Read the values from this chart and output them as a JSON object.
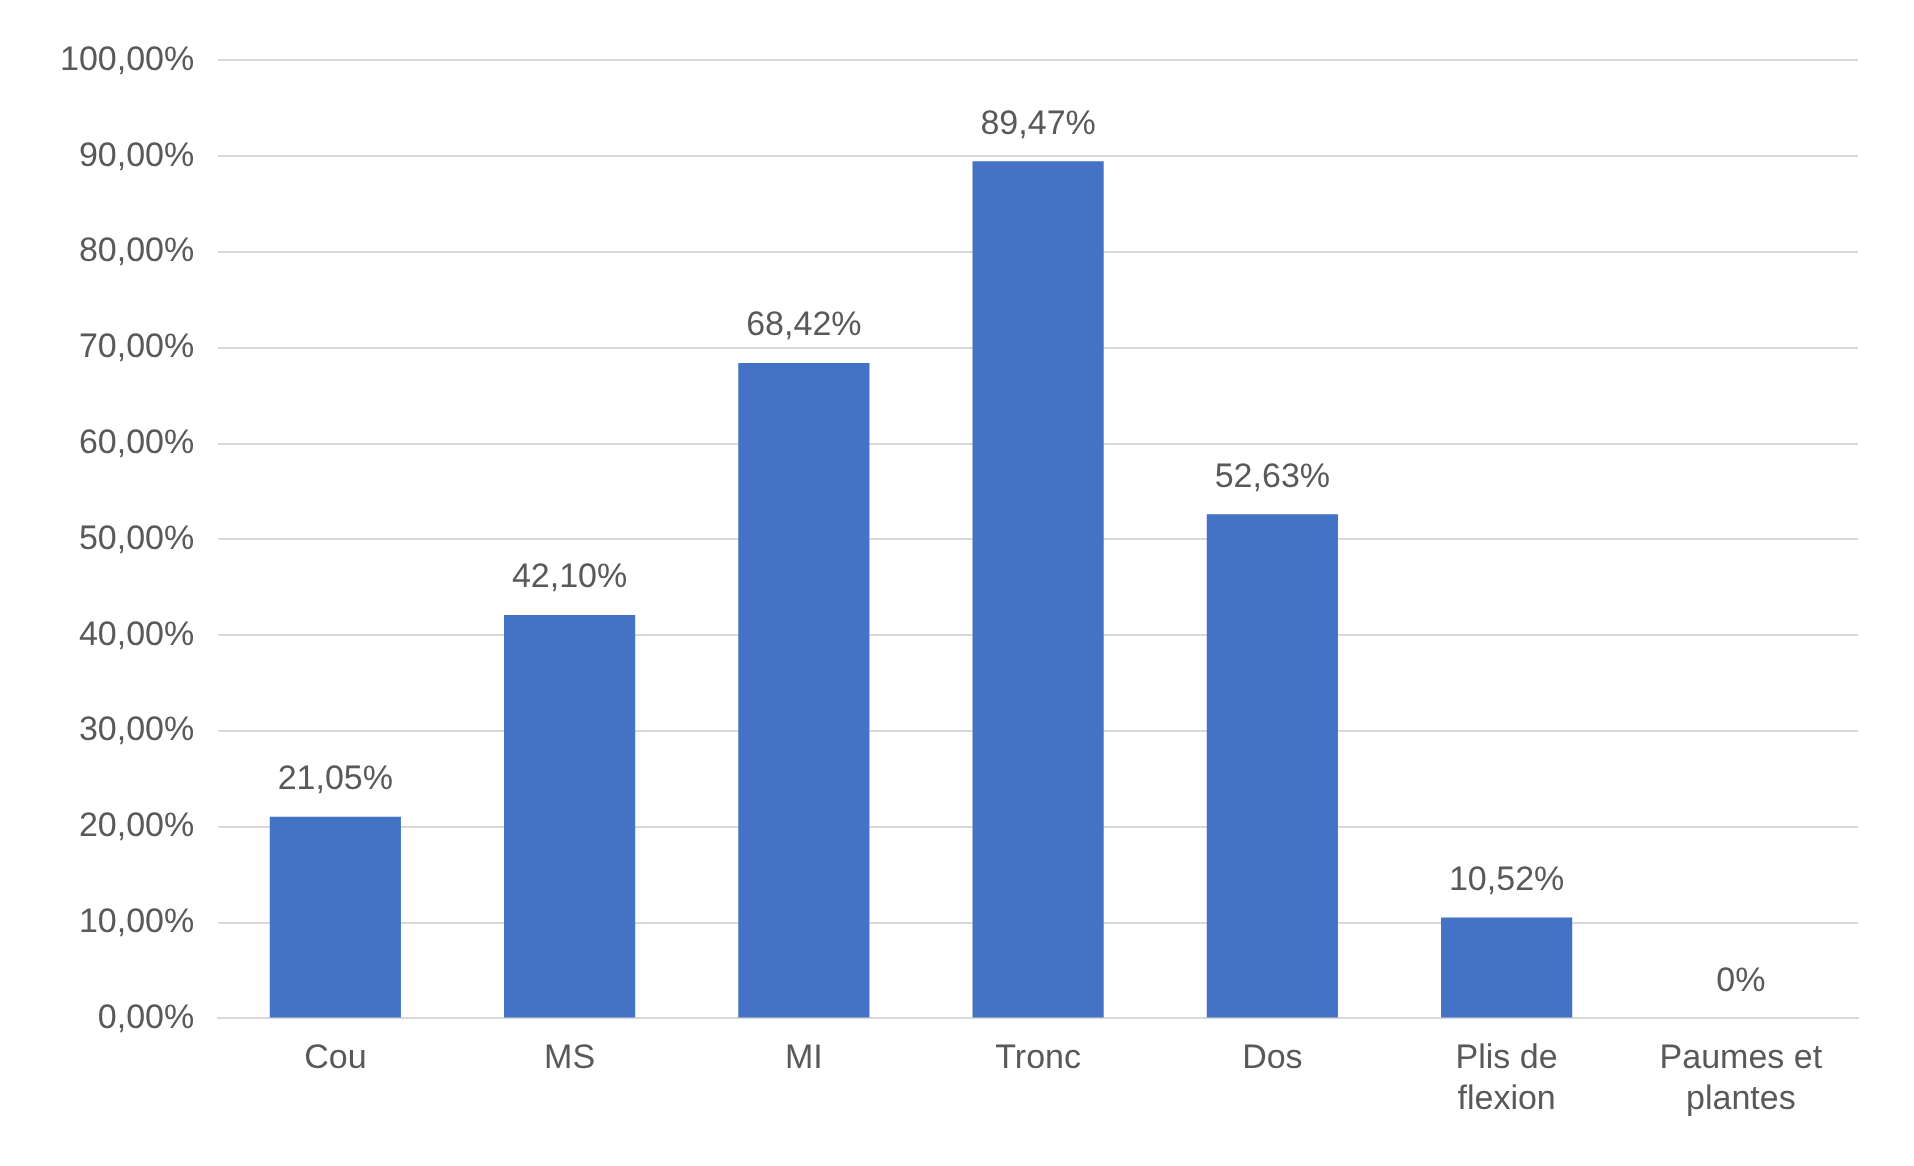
{
  "chart_data": {
    "type": "bar",
    "categories": [
      "Cou",
      "MS",
      "MI",
      "Tronc",
      "Dos",
      "Plis de flexion",
      "Paumes et plantes"
    ],
    "values": [
      21.05,
      42.1,
      68.42,
      89.47,
      52.63,
      10.52,
      0
    ],
    "value_labels": [
      "21,05%",
      "42,10%",
      "68,42%",
      "89,47%",
      "52,63%",
      "10,52%",
      "0%"
    ],
    "color": "#4472c4",
    "ylim": [
      0,
      100
    ],
    "yticks": [
      {
        "value": 0,
        "label": "0,00%"
      },
      {
        "value": 10,
        "label": "10,00%"
      },
      {
        "value": 20,
        "label": "20,00%"
      },
      {
        "value": 30,
        "label": "30,00%"
      },
      {
        "value": 40,
        "label": "40,00%"
      },
      {
        "value": 50,
        "label": "50,00%"
      },
      {
        "value": 60,
        "label": "60,00%"
      },
      {
        "value": 70,
        "label": "70,00%"
      },
      {
        "value": 80,
        "label": "80,00%"
      },
      {
        "value": 90,
        "label": "90,00%"
      },
      {
        "value": 100,
        "label": "100,00%"
      }
    ],
    "grid": "y",
    "legend": false
  }
}
